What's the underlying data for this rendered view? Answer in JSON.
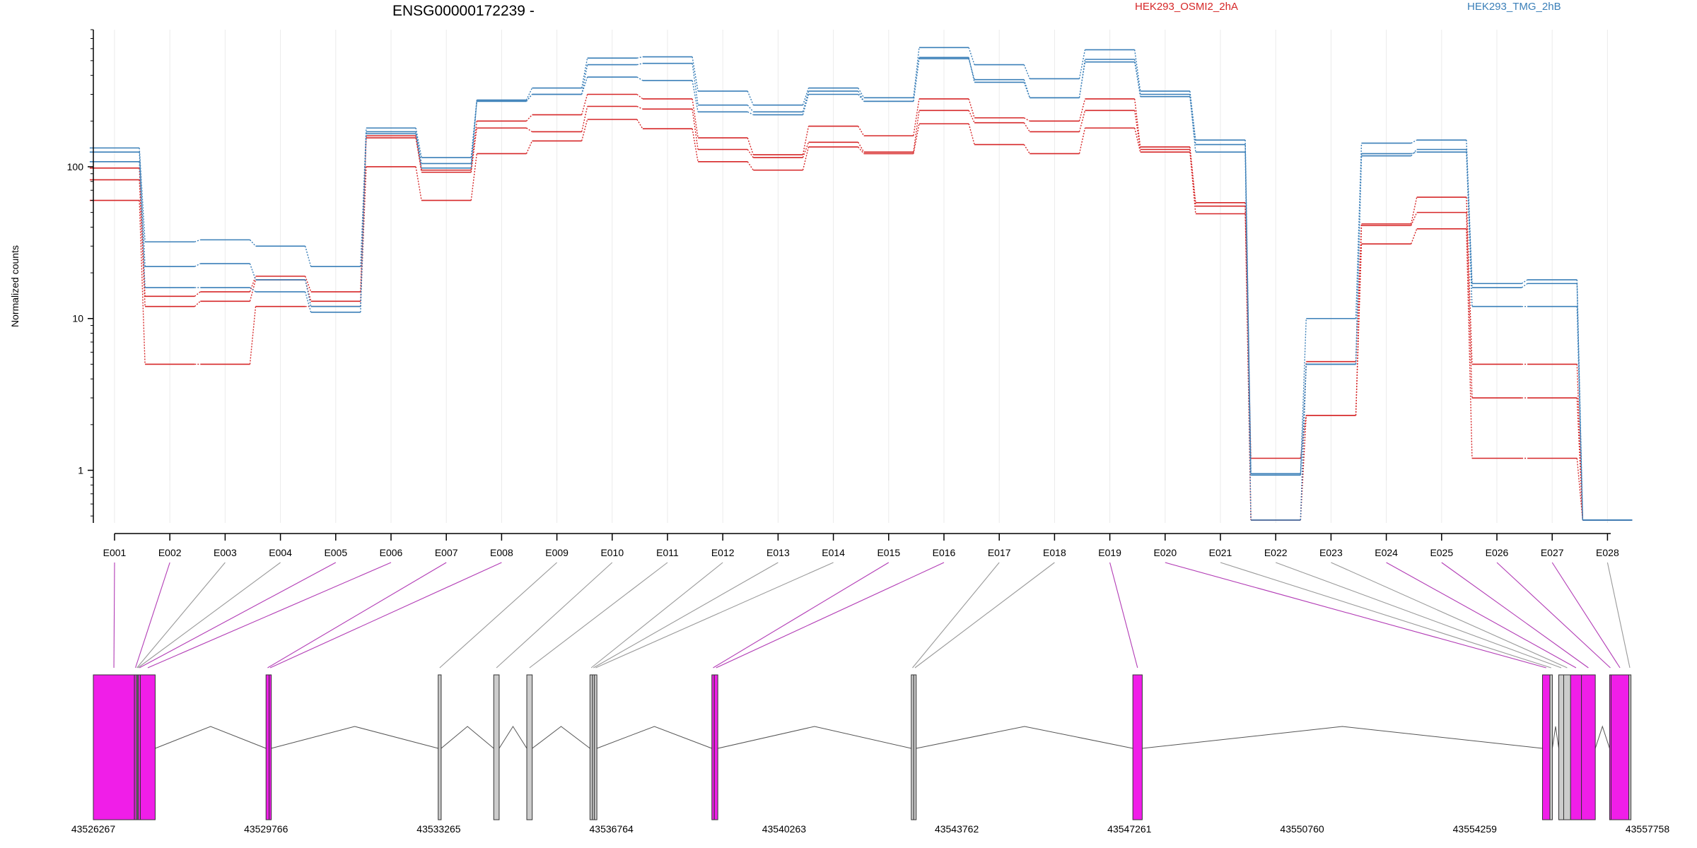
{
  "chart_data": {
    "type": "line",
    "title": "ENSG00000172239 -",
    "ylabel": "Normalized counts",
    "xlabel": "",
    "yscale": "log",
    "ylim": [
      0.45,
      800
    ],
    "y_ticks": [
      "100",
      "10",
      "1"
    ],
    "grid": true,
    "categories": [
      "E001",
      "E002",
      "E003",
      "E004",
      "E005",
      "E006",
      "E007",
      "E008",
      "E009",
      "E010",
      "E011",
      "E012",
      "E013",
      "E014",
      "E015",
      "E016",
      "E017",
      "E018",
      "E019",
      "E020",
      "E021",
      "E022",
      "E023",
      "E024",
      "E025",
      "E026",
      "E027",
      "E028"
    ],
    "legend": [
      {
        "name": "HEK293_OSMI2_2hA",
        "color": "#d62728"
      },
      {
        "name": "HEK293_TMG_2hB",
        "color": "#3a7fb8"
      }
    ],
    "series": [
      {
        "group": 0,
        "color": "#d62728",
        "values": [
          98,
          14,
          15,
          19,
          15,
          155,
          95,
          200,
          220,
          300,
          280,
          155,
          120,
          185,
          160,
          280,
          210,
          200,
          280,
          135,
          58,
          0.47,
          5.2,
          42,
          63,
          5,
          5,
          0.47
        ]
      },
      {
        "group": 0,
        "color": "#d62728",
        "values": [
          82,
          12,
          13,
          18,
          13,
          160,
          92,
          180,
          170,
          250,
          240,
          130,
          115,
          145,
          125,
          235,
          195,
          170,
          235,
          130,
          55,
          1.2,
          2.3,
          41,
          50,
          3,
          3,
          0.47
        ]
      },
      {
        "group": 0,
        "color": "#d62728",
        "values": [
          60,
          5,
          5,
          12,
          12,
          100,
          60,
          122,
          148,
          205,
          178,
          108,
          95,
          135,
          122,
          192,
          140,
          122,
          180,
          125,
          49,
          0.47,
          2.3,
          31,
          39,
          1.2,
          1.2,
          0.47
        ]
      },
      {
        "group": 1,
        "color": "#3a7fb8",
        "values": [
          133,
          32,
          33,
          30,
          22,
          180,
          115,
          275,
          330,
          520,
          530,
          315,
          255,
          330,
          285,
          610,
          470,
          380,
          590,
          315,
          150,
          0.95,
          10,
          143,
          150,
          17,
          18,
          0.47
        ]
      },
      {
        "group": 1,
        "color": "#3a7fb8",
        "values": [
          125,
          22,
          23,
          18,
          12,
          170,
          105,
          270,
          300,
          470,
          480,
          255,
          230,
          315,
          270,
          515,
          375,
          285,
          490,
          300,
          140,
          0.93,
          5,
          118,
          130,
          16,
          17,
          0.47
        ]
      },
      {
        "group": 1,
        "color": "#3a7fb8",
        "values": [
          108,
          16,
          16,
          15,
          11,
          165,
          98,
          270,
          300,
          390,
          370,
          230,
          220,
          300,
          270,
          525,
          360,
          285,
          510,
          290,
          125,
          0.47,
          5,
          122,
          125,
          12,
          12,
          0.47
        ]
      }
    ]
  },
  "gene_model": {
    "coordinates": [
      "43526267",
      "43529766",
      "43533265",
      "43536764",
      "43540263",
      "43543762",
      "43547261",
      "43550760",
      "43554259",
      "43557758"
    ],
    "exon_color": "#f01ee8",
    "intron_color": "#cccccc",
    "bins": [
      {
        "id": "E001",
        "start": 43526267,
        "end": 43527100,
        "type": "exon"
      },
      {
        "id": "E002",
        "start": 43527100,
        "end": 43527140,
        "type": "exon"
      },
      {
        "id": "E003",
        "start": 43527140,
        "end": 43527160,
        "type": "intron"
      },
      {
        "id": "E004",
        "start": 43527160,
        "end": 43527180,
        "type": "intron"
      },
      {
        "id": "E005",
        "start": 43527180,
        "end": 43527220,
        "type": "exon"
      },
      {
        "id": "E006",
        "start": 43527220,
        "end": 43527520,
        "type": "exon"
      },
      {
        "id": "E007",
        "start": 43529766,
        "end": 43529830,
        "type": "exon"
      },
      {
        "id": "E008",
        "start": 43529830,
        "end": 43529870,
        "type": "exon"
      },
      {
        "id": "E009",
        "start": 43533255,
        "end": 43533315,
        "type": "intron"
      },
      {
        "id": "E010",
        "start": 43534380,
        "end": 43534490,
        "type": "intron"
      },
      {
        "id": "E011",
        "start": 43535050,
        "end": 43535160,
        "type": "intron"
      },
      {
        "id": "E012",
        "start": 43536330,
        "end": 43536380,
        "type": "intron"
      },
      {
        "id": "E013",
        "start": 43536380,
        "end": 43536420,
        "type": "intron"
      },
      {
        "id": "E014",
        "start": 43536420,
        "end": 43536470,
        "type": "intron"
      },
      {
        "id": "E015",
        "start": 43538800,
        "end": 43538850,
        "type": "exon"
      },
      {
        "id": "E016",
        "start": 43538850,
        "end": 43538920,
        "type": "exon"
      },
      {
        "id": "E017",
        "start": 43542840,
        "end": 43542890,
        "type": "intron"
      },
      {
        "id": "E018",
        "start": 43542890,
        "end": 43542940,
        "type": "intron"
      },
      {
        "id": "E019",
        "start": 43547330,
        "end": 43547520,
        "type": "exon"
      },
      {
        "id": "E020",
        "start": 43555630,
        "end": 43555780,
        "type": "exon"
      },
      {
        "id": "E021",
        "start": 43555780,
        "end": 43555830,
        "type": "intron"
      },
      {
        "id": "E022",
        "start": 43555960,
        "end": 43556060,
        "type": "intron"
      },
      {
        "id": "E023",
        "start": 43556060,
        "end": 43556200,
        "type": "intron"
      },
      {
        "id": "E024",
        "start": 43556200,
        "end": 43556420,
        "type": "exon"
      },
      {
        "id": "E025",
        "start": 43556420,
        "end": 43556700,
        "type": "exon"
      },
      {
        "id": "E026",
        "start": 43556990,
        "end": 43557020,
        "type": "exon"
      },
      {
        "id": "E027",
        "start": 43557020,
        "end": 43557380,
        "type": "exon"
      },
      {
        "id": "E028",
        "start": 43557380,
        "end": 43557420,
        "type": "intron"
      }
    ],
    "junctions": [
      [
        43527520,
        43529766
      ],
      [
        43529870,
        43533255
      ],
      [
        43533315,
        43534380
      ],
      [
        43534490,
        43535050
      ],
      [
        43535160,
        43536330
      ],
      [
        43536470,
        43538800
      ],
      [
        43538920,
        43542840
      ],
      [
        43542940,
        43547330
      ],
      [
        43547520,
        43555630
      ],
      [
        43555830,
        43555960
      ],
      [
        43556700,
        43556990
      ]
    ]
  }
}
